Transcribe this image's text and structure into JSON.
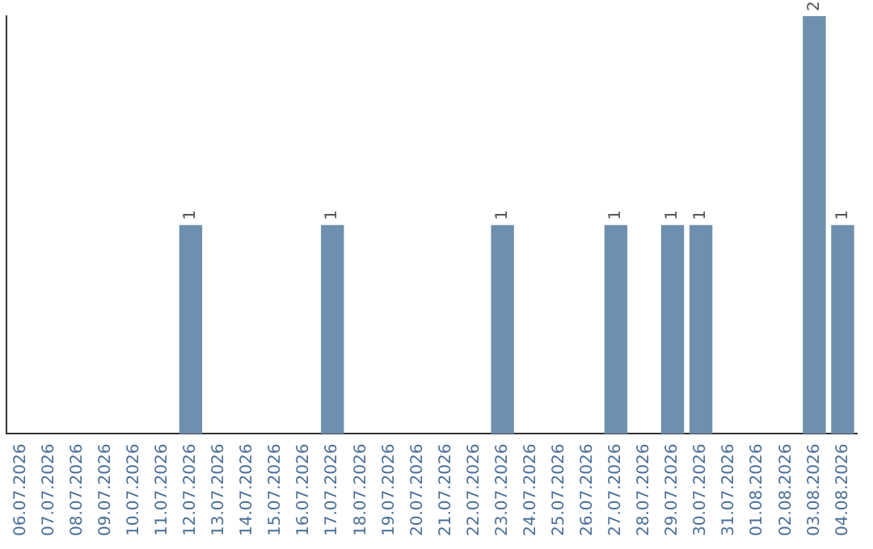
{
  "chart_data": {
    "type": "bar",
    "categories": [
      "06.07.2026",
      "07.07.2026",
      "08.07.2026",
      "09.07.2026",
      "10.07.2026",
      "11.07.2026",
      "12.07.2026",
      "13.07.2026",
      "14.07.2026",
      "15.07.2026",
      "16.07.2026",
      "17.07.2026",
      "18.07.2026",
      "19.07.2026",
      "20.07.2026",
      "21.07.2026",
      "22.07.2026",
      "23.07.2026",
      "24.07.2026",
      "25.07.2026",
      "26.07.2026",
      "27.07.2026",
      "28.07.2026",
      "29.07.2026",
      "30.07.2026",
      "31.07.2026",
      "01.08.2026",
      "02.08.2026",
      "03.08.2026",
      "04.08.2026"
    ],
    "values": [
      0,
      0,
      0,
      0,
      0,
      0,
      1,
      0,
      0,
      0,
      0,
      1,
      0,
      0,
      0,
      0,
      0,
      1,
      0,
      0,
      0,
      1,
      0,
      1,
      1,
      0,
      0,
      0,
      2,
      1
    ],
    "value_labels": [
      null,
      null,
      null,
      null,
      null,
      null,
      "1",
      null,
      null,
      null,
      null,
      "1",
      null,
      null,
      null,
      null,
      null,
      "1",
      null,
      null,
      null,
      "1",
      null,
      "1",
      "1",
      null,
      null,
      null,
      "2",
      "1"
    ],
    "color": "#6f8fae",
    "ylim": [
      0,
      2
    ],
    "tick_labels": "x",
    "grid": false,
    "legend": false
  }
}
